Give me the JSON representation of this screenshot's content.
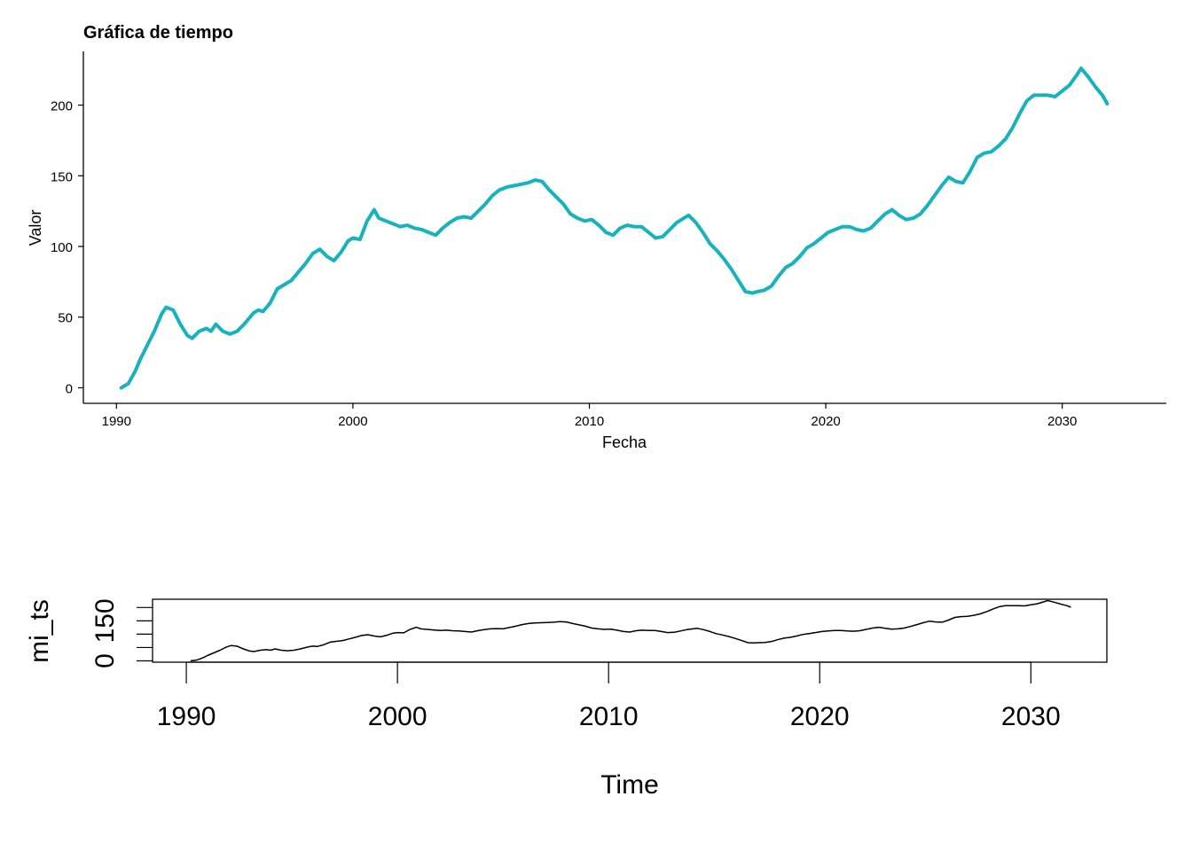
{
  "colors": {
    "line_top": "#17b3bd",
    "line_bottom": "#000000",
    "axis": "#000000"
  },
  "chart_data": [
    {
      "type": "line",
      "title": "Gráfica de tiempo",
      "xlabel": "Fecha",
      "ylabel": "Valor",
      "xlim": [
        1988.6,
        2034.4
      ],
      "ylim": [
        -11,
        238
      ],
      "xticks": [
        1990,
        2000,
        2010,
        2020,
        2030
      ],
      "xtick_labels": [
        "1990",
        "2000",
        "2010",
        "2020",
        "2030"
      ],
      "yticks": [
        0,
        50,
        100,
        150,
        200
      ],
      "ytick_labels": [
        "0",
        "50",
        "100",
        "150",
        "200"
      ],
      "grid": false,
      "series": [
        {
          "x": [
            1990.2,
            1990.5,
            1990.8,
            1991.0,
            1991.3,
            1991.6,
            1991.9,
            1992.1,
            1992.4,
            1992.7,
            1993.0,
            1993.2,
            1993.5,
            1993.8,
            1994.0,
            1994.2,
            1994.5,
            1994.8,
            1995.1,
            1995.4,
            1995.8,
            1996.0,
            1996.2,
            1996.5,
            1996.8,
            1997.1,
            1997.4,
            1997.7,
            1998.0,
            1998.3,
            1998.6,
            1998.9,
            1999.2,
            1999.5,
            1999.8,
            2000.0,
            2000.3,
            2000.6,
            2000.9,
            2001.1,
            2001.4,
            2001.7,
            2002.0,
            2002.3,
            2002.6,
            2002.9,
            2003.2,
            2003.5,
            2003.8,
            2004.1,
            2004.4,
            2004.7,
            2005.0,
            2005.3,
            2005.6,
            2005.9,
            2006.2,
            2006.5,
            2006.8,
            2007.1,
            2007.4,
            2007.7,
            2008.0,
            2008.3,
            2008.6,
            2008.9,
            2009.2,
            2009.5,
            2009.8,
            2010.1,
            2010.4,
            2010.7,
            2011.0,
            2011.3,
            2011.6,
            2011.9,
            2012.2,
            2012.5,
            2012.8,
            2013.1,
            2013.4,
            2013.7,
            2014.0,
            2014.2,
            2014.5,
            2014.8,
            2015.1,
            2015.4,
            2015.7,
            2016.0,
            2016.3,
            2016.6,
            2016.9,
            2017.1,
            2017.4,
            2017.7,
            2018.0,
            2018.3,
            2018.6,
            2018.9,
            2019.2,
            2019.5,
            2019.8,
            2020.1,
            2020.4,
            2020.7,
            2021.0,
            2021.3,
            2021.6,
            2021.9,
            2022.2,
            2022.5,
            2022.8,
            2023.1,
            2023.4,
            2023.7,
            2024.0,
            2024.3,
            2024.6,
            2024.9,
            2025.2,
            2025.5,
            2025.8,
            2026.1,
            2026.4,
            2026.7,
            2027.0,
            2027.3,
            2027.6,
            2027.9,
            2028.2,
            2028.5,
            2028.8,
            2029.1,
            2029.4,
            2029.7,
            2030.0,
            2030.3,
            2030.6,
            2030.8,
            2031.1,
            2031.4,
            2031.7,
            2031.9
          ],
          "values": [
            0,
            3,
            12,
            20,
            30,
            40,
            52,
            57,
            55,
            45,
            37,
            35,
            40,
            42,
            40,
            45,
            40,
            38,
            40,
            45,
            53,
            55,
            54,
            60,
            70,
            73,
            76,
            82,
            88,
            95,
            98,
            93,
            90,
            96,
            104,
            106,
            105,
            118,
            126,
            120,
            118,
            116,
            114,
            115,
            113,
            112,
            110,
            108,
            113,
            117,
            120,
            121,
            120,
            125,
            130,
            136,
            140,
            142,
            143,
            144,
            145,
            147,
            146,
            140,
            135,
            130,
            123,
            120,
            118,
            119,
            115,
            110,
            108,
            113,
            115,
            114,
            114,
            110,
            106,
            107,
            112,
            117,
            120,
            122,
            117,
            110,
            102,
            97,
            91,
            84,
            76,
            68,
            67,
            68,
            69,
            72,
            79,
            85,
            88,
            93,
            99,
            102,
            106,
            110,
            112,
            114,
            114,
            112,
            111,
            113,
            118,
            123,
            126,
            122,
            119,
            120,
            123,
            129,
            136,
            143,
            149,
            146,
            145,
            153,
            163,
            166,
            167,
            171,
            176,
            184,
            194,
            203,
            207,
            207,
            207,
            206,
            210,
            214,
            221,
            226,
            220,
            213,
            207,
            201
          ]
        }
      ]
    },
    {
      "type": "line",
      "title": "",
      "xlabel": "Time",
      "ylabel": "mi_ts",
      "xlim": [
        1988.4,
        2033.6
      ],
      "ylim": [
        -5,
        231
      ],
      "xticks": [
        1990,
        2000,
        2010,
        2020,
        2030
      ],
      "xtick_labels": [
        "1990",
        "2000",
        "2010",
        "2020",
        "2030"
      ],
      "yticks": [
        0,
        50,
        100,
        150,
        200
      ],
      "ytick_labels": [
        "0",
        "",
        "",
        "150",
        ""
      ],
      "grid": false,
      "series": [
        {
          "x_from": "chart_data.0.series.0.x",
          "values_from": "chart_data.0.series.0.values"
        }
      ]
    }
  ]
}
